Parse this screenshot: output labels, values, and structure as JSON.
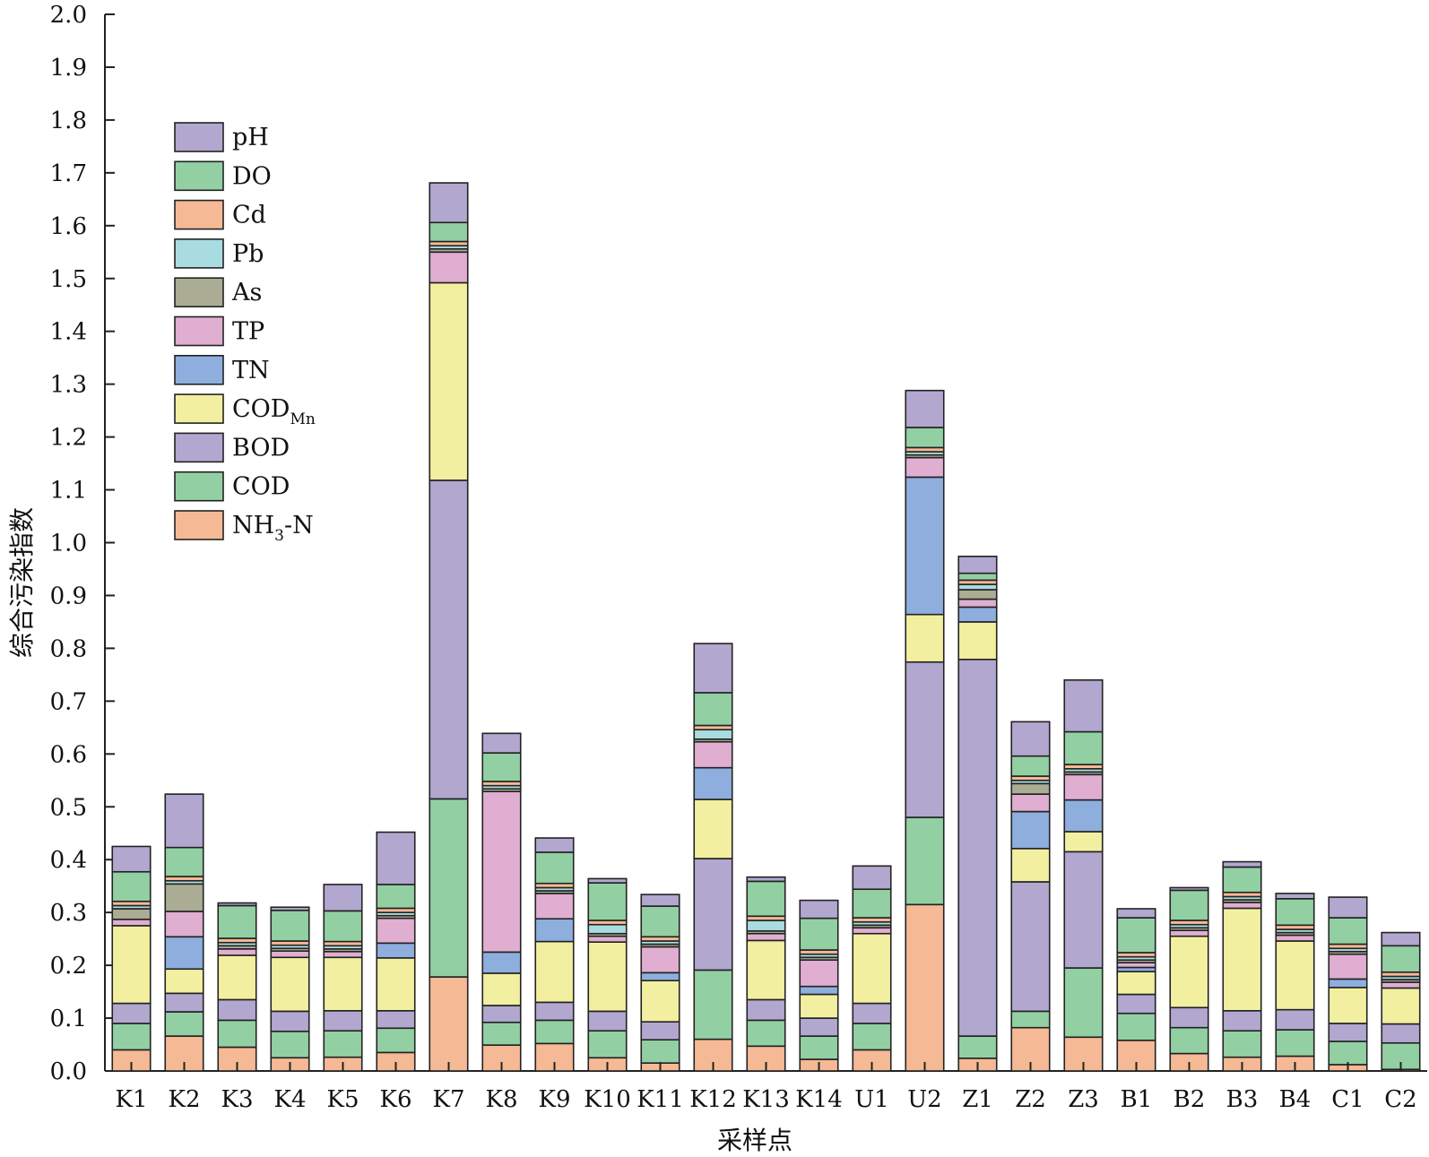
{
  "chart_data": {
    "type": "stacked-bar",
    "title": "",
    "xlabel": "采样点",
    "ylabel": "综合污染指数",
    "ylim": [
      0,
      2.0
    ],
    "yticks": [
      "0.0",
      "0.1",
      "0.2",
      "0.3",
      "0.4",
      "0.5",
      "0.6",
      "0.7",
      "0.8",
      "0.9",
      "1.0",
      "1.1",
      "1.2",
      "1.3",
      "1.4",
      "1.5",
      "1.6",
      "1.7",
      "1.8",
      "1.9",
      "2.0"
    ],
    "categories": [
      "K1",
      "K2",
      "K3",
      "K4",
      "K5",
      "K6",
      "K7",
      "K8",
      "K9",
      "K10",
      "K11",
      "K12",
      "K13",
      "K14",
      "U1",
      "U2",
      "Z1",
      "Z2",
      "Z3",
      "B1",
      "B2",
      "B3",
      "B4",
      "C1",
      "C2"
    ],
    "legend_position": "top-left",
    "series": [
      {
        "name": "NH3-N",
        "label_main": "NH",
        "label_sub": "3",
        "label_tail": "-N",
        "color": "#F5B995",
        "values": [
          0.04,
          0.066,
          0.045,
          0.025,
          0.026,
          0.035,
          0.178,
          0.049,
          0.052,
          0.025,
          0.015,
          0.06,
          0.047,
          0.022,
          0.04,
          0.315,
          0.024,
          0.082,
          0.064,
          0.058,
          0.033,
          0.026,
          0.028,
          0.012,
          0.003
        ]
      },
      {
        "name": "COD",
        "label_main": "COD",
        "label_sub": "",
        "label_tail": "",
        "color": "#92D0A3",
        "values": [
          0.05,
          0.046,
          0.051,
          0.05,
          0.05,
          0.046,
          0.337,
          0.043,
          0.044,
          0.051,
          0.044,
          0.131,
          0.049,
          0.044,
          0.05,
          0.165,
          0.042,
          0.031,
          0.131,
          0.051,
          0.049,
          0.05,
          0.05,
          0.044,
          0.05
        ]
      },
      {
        "name": "BOD",
        "label_main": "BOD",
        "label_sub": "",
        "label_tail": "",
        "color": "#B1A7CF",
        "values": [
          0.038,
          0.035,
          0.039,
          0.038,
          0.038,
          0.033,
          0.603,
          0.032,
          0.034,
          0.037,
          0.034,
          0.211,
          0.039,
          0.034,
          0.038,
          0.294,
          0.713,
          0.245,
          0.22,
          0.036,
          0.038,
          0.038,
          0.038,
          0.034,
          0.036
        ]
      },
      {
        "name": "CODMn",
        "label_main": "COD",
        "label_sub": "Mn",
        "label_tail": "",
        "color": "#F2F0A0",
        "values": [
          0.147,
          0.046,
          0.084,
          0.102,
          0.101,
          0.1,
          0.374,
          0.061,
          0.115,
          0.131,
          0.078,
          0.112,
          0.112,
          0.045,
          0.132,
          0.09,
          0.071,
          0.063,
          0.038,
          0.043,
          0.135,
          0.194,
          0.13,
          0.068,
          0.068
        ]
      },
      {
        "name": "TN",
        "label_main": "TN",
        "label_sub": "",
        "label_tail": "",
        "color": "#8EAFDD",
        "values": [
          0,
          0.061,
          0,
          0,
          0,
          0.028,
          0,
          0.04,
          0.043,
          0,
          0.015,
          0.06,
          0,
          0.015,
          0,
          0.26,
          0.028,
          0.07,
          0.06,
          0.008,
          0,
          0,
          0,
          0.016,
          0
        ]
      },
      {
        "name": "TP",
        "label_main": "TP",
        "label_sub": "",
        "label_tail": "",
        "color": "#DFAED1",
        "values": [
          0.012,
          0.048,
          0.012,
          0.012,
          0.011,
          0.047,
          0.058,
          0.304,
          0.048,
          0.011,
          0.049,
          0.049,
          0.013,
          0.05,
          0.011,
          0.037,
          0.015,
          0.033,
          0.048,
          0.009,
          0.011,
          0.011,
          0.011,
          0.047,
          0.011
        ]
      },
      {
        "name": "As",
        "label_main": "As",
        "label_sub": "",
        "label_tail": "",
        "color": "#ABAC94",
        "values": [
          0.02,
          0.052,
          0.006,
          0.005,
          0.005,
          0.005,
          0.006,
          0.005,
          0.005,
          0.005,
          0.005,
          0.005,
          0.005,
          0.005,
          0.005,
          0.005,
          0.018,
          0.02,
          0.005,
          0.005,
          0.005,
          0.005,
          0.005,
          0.005,
          0.005
        ]
      },
      {
        "name": "Pb",
        "label_main": "Pb",
        "label_sub": "",
        "label_tail": "",
        "color": "#A9DCE0",
        "values": [
          0.006,
          0.006,
          0.006,
          0.006,
          0.006,
          0.006,
          0.006,
          0.006,
          0.006,
          0.017,
          0.006,
          0.018,
          0.02,
          0.006,
          0.006,
          0.006,
          0.01,
          0.006,
          0.006,
          0.006,
          0.006,
          0.006,
          0.006,
          0.006,
          0.006
        ]
      },
      {
        "name": "Cd",
        "label_main": "Cd",
        "label_sub": "",
        "label_tail": "",
        "color": "#F5B995",
        "values": [
          0.008,
          0.008,
          0.008,
          0.008,
          0.008,
          0.008,
          0.008,
          0.008,
          0.008,
          0.008,
          0.008,
          0.008,
          0.008,
          0.008,
          0.008,
          0.008,
          0.008,
          0.008,
          0.008,
          0.008,
          0.008,
          0.008,
          0.008,
          0.008,
          0.008
        ]
      },
      {
        "name": "DO",
        "label_main": "DO",
        "label_sub": "",
        "label_tail": "",
        "color": "#92D0A3",
        "values": [
          0.056,
          0.055,
          0.062,
          0.058,
          0.058,
          0.045,
          0.036,
          0.054,
          0.059,
          0.071,
          0.058,
          0.062,
          0.066,
          0.06,
          0.054,
          0.038,
          0.013,
          0.038,
          0.062,
          0.066,
          0.057,
          0.048,
          0.05,
          0.05,
          0.05
        ]
      },
      {
        "name": "pH",
        "label_main": "pH",
        "label_sub": "",
        "label_tail": "",
        "color": "#B1A7CF",
        "values": [
          0.048,
          0.101,
          0.005,
          0.006,
          0.05,
          0.099,
          0.075,
          0.037,
          0.027,
          0.008,
          0.022,
          0.093,
          0.008,
          0.034,
          0.044,
          0.07,
          0.032,
          0.065,
          0.098,
          0.017,
          0.005,
          0.01,
          0.01,
          0.039,
          0.025
        ]
      }
    ]
  }
}
